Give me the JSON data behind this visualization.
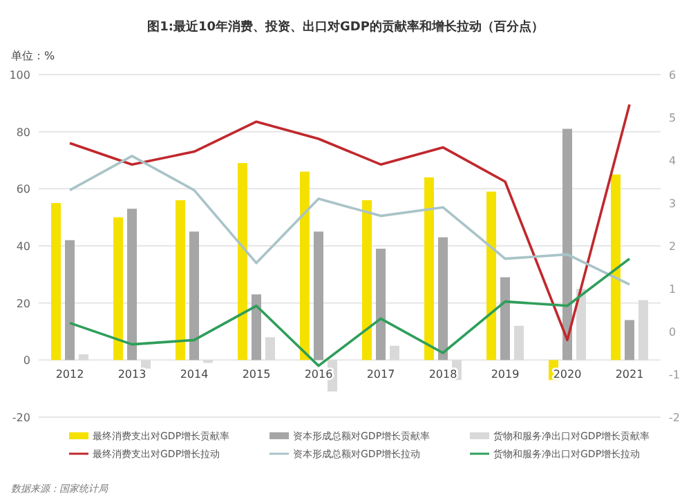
{
  "chart_data": {
    "type": "bar",
    "title": "图1:最近10年消费、投资、出口对GDP的贡献率和增长拉动（百分点）",
    "ylabel": "单位：%",
    "categories": [
      "2012",
      "2013",
      "2014",
      "2015",
      "2016",
      "2017",
      "2018",
      "2019",
      "2020",
      "2021"
    ],
    "series": [
      {
        "name": "最终消费支出对GDP增长贡献率",
        "color": "#f5e100",
        "values": [
          55,
          50,
          56,
          69,
          66,
          56,
          64,
          59,
          -7,
          65
        ]
      },
      {
        "name": "资本形成总额对GDP增长贡献率",
        "color": "#a6a6a6",
        "values": [
          42,
          53,
          45,
          23,
          45,
          39,
          43,
          29,
          81,
          14
        ]
      },
      {
        "name": "货物和服务净出口对GDP增长贡献率",
        "color": "#d9d9d9",
        "values": [
          2,
          -3,
          -1,
          8,
          -11,
          5,
          -7,
          12,
          25,
          21
        ]
      },
      {
        "name": "最终消费支出对GDP增长拉动",
        "type": "line",
        "axis": "y2",
        "color": "#c0282d",
        "values": [
          4.4,
          3.9,
          4.2,
          4.9,
          4.5,
          3.9,
          4.3,
          3.5,
          -0.2,
          5.3
        ]
      },
      {
        "name": "资本形成总额对GDP增长拉动",
        "type": "line",
        "axis": "y2",
        "color": "#a9c4c8",
        "values": [
          3.3,
          4.1,
          3.3,
          1.6,
          3.1,
          2.7,
          2.9,
          1.7,
          1.8,
          1.1
        ]
      },
      {
        "name": "货物和服务净出口对GDP增长拉动",
        "type": "line",
        "axis": "y2",
        "color": "#2e9e5a",
        "values": [
          0.2,
          -0.3,
          -0.2,
          0.6,
          -0.8,
          0.3,
          -0.5,
          0.7,
          0.6,
          1.7
        ]
      }
    ],
    "ylim": [
      -20,
      100
    ],
    "yticks": [
      -20,
      0,
      20,
      40,
      60,
      80,
      100
    ],
    "y2lim": [
      -2,
      6
    ],
    "y2ticks": [
      -2,
      -1,
      0,
      1,
      2,
      3,
      4,
      5,
      6
    ],
    "grid": "y",
    "legend": "bottom",
    "annotations": [
      "数据来源：国家统计局"
    ]
  }
}
